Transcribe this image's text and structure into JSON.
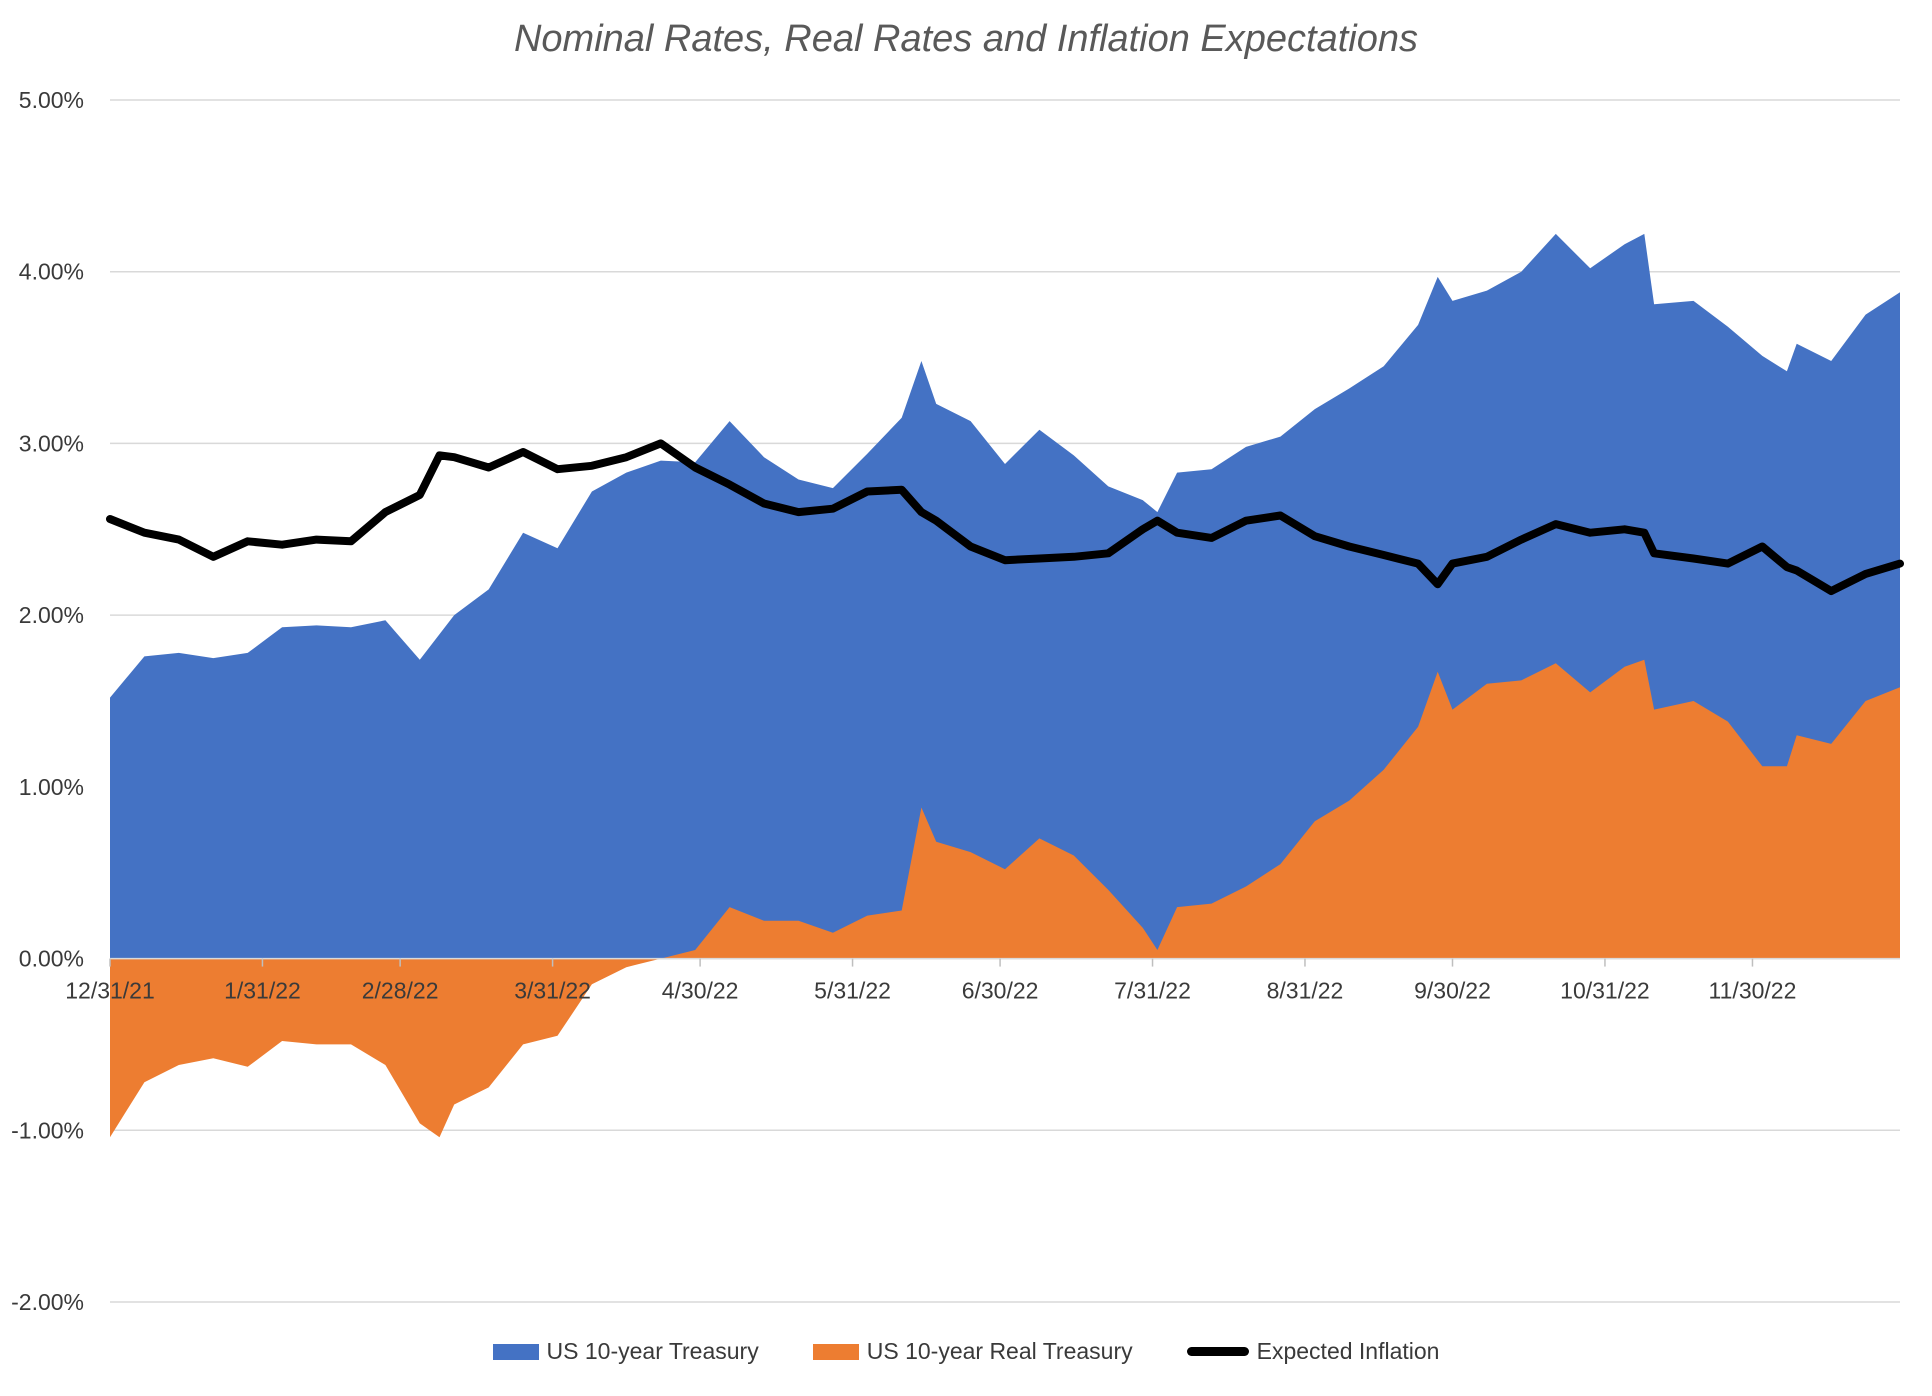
{
  "chart_data": {
    "type": "area",
    "title": "Nominal Rates, Real Rates and Inflation Expectations",
    "xlabel": "",
    "ylabel": "",
    "ylim": [
      -2.0,
      5.0
    ],
    "y_ticks": [
      "5.00%",
      "4.00%",
      "3.00%",
      "2.00%",
      "1.00%",
      "0.00%",
      "-1.00%",
      "-2.00%"
    ],
    "y_tick_values": [
      5,
      4,
      3,
      2,
      1,
      0,
      -1,
      -2
    ],
    "x_range": [
      "2021-12-31",
      "2022-12-30"
    ],
    "x_ticks": [
      {
        "label": "12/31/21",
        "date": "2021-12-31"
      },
      {
        "label": "1/31/22",
        "date": "2022-01-31"
      },
      {
        "label": "2/28/22",
        "date": "2022-02-28"
      },
      {
        "label": "3/31/22",
        "date": "2022-03-31"
      },
      {
        "label": "4/30/22",
        "date": "2022-04-30"
      },
      {
        "label": "5/31/22",
        "date": "2022-05-31"
      },
      {
        "label": "6/30/22",
        "date": "2022-06-30"
      },
      {
        "label": "7/31/22",
        "date": "2022-07-31"
      },
      {
        "label": "8/31/22",
        "date": "2022-08-31"
      },
      {
        "label": "9/30/22",
        "date": "2022-09-30"
      },
      {
        "label": "10/31/22",
        "date": "2022-10-31"
      },
      {
        "label": "11/30/22",
        "date": "2022-11-30"
      }
    ],
    "grid": true,
    "legend_position": "bottom",
    "series": [
      {
        "name": "US 10-year Treasury",
        "kind": "area",
        "color": "#4472C4",
        "points": [
          [
            "2021-12-31",
            1.52
          ],
          [
            "2022-01-07",
            1.76
          ],
          [
            "2022-01-14",
            1.78
          ],
          [
            "2022-01-21",
            1.75
          ],
          [
            "2022-01-28",
            1.78
          ],
          [
            "2022-02-04",
            1.93
          ],
          [
            "2022-02-11",
            1.94
          ],
          [
            "2022-02-18",
            1.93
          ],
          [
            "2022-02-25",
            1.97
          ],
          [
            "2022-03-04",
            1.74
          ],
          [
            "2022-03-11",
            2.0
          ],
          [
            "2022-03-18",
            2.15
          ],
          [
            "2022-03-25",
            2.48
          ],
          [
            "2022-04-01",
            2.39
          ],
          [
            "2022-04-08",
            2.72
          ],
          [
            "2022-04-15",
            2.83
          ],
          [
            "2022-04-22",
            2.9
          ],
          [
            "2022-04-29",
            2.89
          ],
          [
            "2022-05-06",
            3.13
          ],
          [
            "2022-05-13",
            2.92
          ],
          [
            "2022-05-20",
            2.79
          ],
          [
            "2022-05-27",
            2.74
          ],
          [
            "2022-06-03",
            2.94
          ],
          [
            "2022-06-10",
            3.15
          ],
          [
            "2022-06-14",
            3.48
          ],
          [
            "2022-06-17",
            3.23
          ],
          [
            "2022-06-24",
            3.13
          ],
          [
            "2022-07-01",
            2.88
          ],
          [
            "2022-07-08",
            3.08
          ],
          [
            "2022-07-15",
            2.93
          ],
          [
            "2022-07-22",
            2.75
          ],
          [
            "2022-07-29",
            2.67
          ],
          [
            "2022-08-01",
            2.6
          ],
          [
            "2022-08-05",
            2.83
          ],
          [
            "2022-08-12",
            2.85
          ],
          [
            "2022-08-19",
            2.98
          ],
          [
            "2022-08-26",
            3.04
          ],
          [
            "2022-09-02",
            3.2
          ],
          [
            "2022-09-09",
            3.32
          ],
          [
            "2022-09-16",
            3.45
          ],
          [
            "2022-09-23",
            3.69
          ],
          [
            "2022-09-27",
            3.97
          ],
          [
            "2022-09-30",
            3.83
          ],
          [
            "2022-10-07",
            3.89
          ],
          [
            "2022-10-14",
            4.0
          ],
          [
            "2022-10-21",
            4.22
          ],
          [
            "2022-10-28",
            4.02
          ],
          [
            "2022-11-04",
            4.16
          ],
          [
            "2022-11-08",
            4.22
          ],
          [
            "2022-11-10",
            3.81
          ],
          [
            "2022-11-18",
            3.83
          ],
          [
            "2022-11-25",
            3.68
          ],
          [
            "2022-12-02",
            3.51
          ],
          [
            "2022-12-07",
            3.42
          ],
          [
            "2022-12-09",
            3.58
          ],
          [
            "2022-12-16",
            3.48
          ],
          [
            "2022-12-23",
            3.75
          ],
          [
            "2022-12-30",
            3.88
          ]
        ]
      },
      {
        "name": "US 10-year Real Treasury",
        "kind": "area",
        "color": "#ED7D31",
        "points": [
          [
            "2021-12-31",
            -1.04
          ],
          [
            "2022-01-07",
            -0.72
          ],
          [
            "2022-01-14",
            -0.62
          ],
          [
            "2022-01-21",
            -0.58
          ],
          [
            "2022-01-28",
            -0.63
          ],
          [
            "2022-02-04",
            -0.48
          ],
          [
            "2022-02-11",
            -0.5
          ],
          [
            "2022-02-18",
            -0.5
          ],
          [
            "2022-02-25",
            -0.62
          ],
          [
            "2022-03-04",
            -0.96
          ],
          [
            "2022-03-08",
            -1.04
          ],
          [
            "2022-03-11",
            -0.85
          ],
          [
            "2022-03-18",
            -0.75
          ],
          [
            "2022-03-25",
            -0.5
          ],
          [
            "2022-04-01",
            -0.45
          ],
          [
            "2022-04-08",
            -0.15
          ],
          [
            "2022-04-15",
            -0.05
          ],
          [
            "2022-04-22",
            0.0
          ],
          [
            "2022-04-29",
            0.05
          ],
          [
            "2022-05-06",
            0.3
          ],
          [
            "2022-05-13",
            0.22
          ],
          [
            "2022-05-20",
            0.22
          ],
          [
            "2022-05-27",
            0.15
          ],
          [
            "2022-06-03",
            0.25
          ],
          [
            "2022-06-10",
            0.28
          ],
          [
            "2022-06-14",
            0.88
          ],
          [
            "2022-06-17",
            0.68
          ],
          [
            "2022-06-24",
            0.62
          ],
          [
            "2022-07-01",
            0.52
          ],
          [
            "2022-07-08",
            0.7
          ],
          [
            "2022-07-15",
            0.6
          ],
          [
            "2022-07-22",
            0.4
          ],
          [
            "2022-07-29",
            0.18
          ],
          [
            "2022-08-01",
            0.05
          ],
          [
            "2022-08-05",
            0.3
          ],
          [
            "2022-08-12",
            0.32
          ],
          [
            "2022-08-19",
            0.42
          ],
          [
            "2022-08-26",
            0.55
          ],
          [
            "2022-09-02",
            0.8
          ],
          [
            "2022-09-09",
            0.92
          ],
          [
            "2022-09-16",
            1.1
          ],
          [
            "2022-09-23",
            1.35
          ],
          [
            "2022-09-27",
            1.67
          ],
          [
            "2022-09-30",
            1.45
          ],
          [
            "2022-10-07",
            1.6
          ],
          [
            "2022-10-14",
            1.62
          ],
          [
            "2022-10-21",
            1.72
          ],
          [
            "2022-10-28",
            1.55
          ],
          [
            "2022-11-04",
            1.7
          ],
          [
            "2022-11-08",
            1.74
          ],
          [
            "2022-11-10",
            1.45
          ],
          [
            "2022-11-18",
            1.5
          ],
          [
            "2022-11-25",
            1.38
          ],
          [
            "2022-12-02",
            1.12
          ],
          [
            "2022-12-07",
            1.12
          ],
          [
            "2022-12-09",
            1.3
          ],
          [
            "2022-12-16",
            1.25
          ],
          [
            "2022-12-23",
            1.5
          ],
          [
            "2022-12-30",
            1.58
          ]
        ]
      },
      {
        "name": "Expected Inflation",
        "kind": "line",
        "color": "#000000",
        "points": [
          [
            "2021-12-31",
            2.56
          ],
          [
            "2022-01-07",
            2.48
          ],
          [
            "2022-01-14",
            2.44
          ],
          [
            "2022-01-21",
            2.34
          ],
          [
            "2022-01-28",
            2.43
          ],
          [
            "2022-02-04",
            2.41
          ],
          [
            "2022-02-11",
            2.44
          ],
          [
            "2022-02-18",
            2.43
          ],
          [
            "2022-02-25",
            2.6
          ],
          [
            "2022-03-04",
            2.7
          ],
          [
            "2022-03-08",
            2.93
          ],
          [
            "2022-03-11",
            2.92
          ],
          [
            "2022-03-18",
            2.86
          ],
          [
            "2022-03-25",
            2.95
          ],
          [
            "2022-04-01",
            2.85
          ],
          [
            "2022-04-08",
            2.87
          ],
          [
            "2022-04-15",
            2.92
          ],
          [
            "2022-04-22",
            3.0
          ],
          [
            "2022-04-29",
            2.86
          ],
          [
            "2022-05-06",
            2.76
          ],
          [
            "2022-05-13",
            2.65
          ],
          [
            "2022-05-20",
            2.6
          ],
          [
            "2022-05-27",
            2.62
          ],
          [
            "2022-06-03",
            2.72
          ],
          [
            "2022-06-10",
            2.73
          ],
          [
            "2022-06-14",
            2.6
          ],
          [
            "2022-06-17",
            2.55
          ],
          [
            "2022-06-24",
            2.4
          ],
          [
            "2022-07-01",
            2.32
          ],
          [
            "2022-07-08",
            2.33
          ],
          [
            "2022-07-15",
            2.34
          ],
          [
            "2022-07-22",
            2.36
          ],
          [
            "2022-07-29",
            2.5
          ],
          [
            "2022-08-01",
            2.55
          ],
          [
            "2022-08-05",
            2.48
          ],
          [
            "2022-08-12",
            2.45
          ],
          [
            "2022-08-19",
            2.55
          ],
          [
            "2022-08-26",
            2.58
          ],
          [
            "2022-09-02",
            2.46
          ],
          [
            "2022-09-09",
            2.4
          ],
          [
            "2022-09-16",
            2.35
          ],
          [
            "2022-09-23",
            2.3
          ],
          [
            "2022-09-27",
            2.18
          ],
          [
            "2022-09-30",
            2.3
          ],
          [
            "2022-10-07",
            2.34
          ],
          [
            "2022-10-14",
            2.44
          ],
          [
            "2022-10-21",
            2.53
          ],
          [
            "2022-10-28",
            2.48
          ],
          [
            "2022-11-04",
            2.5
          ],
          [
            "2022-11-08",
            2.48
          ],
          [
            "2022-11-10",
            2.36
          ],
          [
            "2022-11-18",
            2.33
          ],
          [
            "2022-11-25",
            2.3
          ],
          [
            "2022-12-02",
            2.4
          ],
          [
            "2022-12-07",
            2.28
          ],
          [
            "2022-12-09",
            2.26
          ],
          [
            "2022-12-16",
            2.14
          ],
          [
            "2022-12-23",
            2.24
          ],
          [
            "2022-12-30",
            2.3
          ]
        ]
      }
    ]
  }
}
